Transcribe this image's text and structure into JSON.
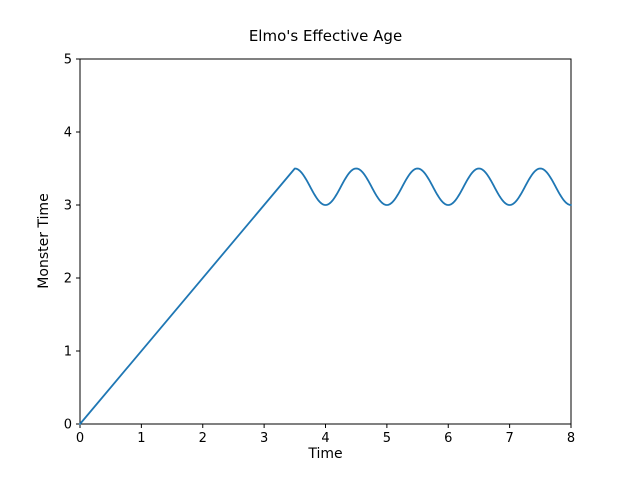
{
  "figure": {
    "background": "#ffffff",
    "frame_color": "#000000"
  },
  "chart_data": {
    "type": "line",
    "title": "Elmo's Effective Age",
    "xlabel": "Time",
    "ylabel": "Monster Time",
    "xlim": [
      0,
      8
    ],
    "ylim": [
      0,
      5
    ],
    "xticks": [
      0,
      1,
      2,
      3,
      4,
      5,
      6,
      7,
      8
    ],
    "yticks": [
      0,
      1,
      2,
      3,
      4,
      5
    ],
    "grid": false,
    "legend": "none",
    "line_color": "#1f77b4",
    "series": [
      {
        "name": "effective-age",
        "description": "Linear ramp with slope 1 from (0,0) to (3.5,3.5), then oscillates sinusoidally between 3.0 and 3.5 with period 1; peaks at x=3.5,4.5,5.5,6.5,7.5 (y=3.5) and troughs at x=4,5,6,7,8 (y=3.0)",
        "segments": [
          {
            "kind": "linear",
            "x_start": 0,
            "x_end": 3.5,
            "y_start": 0,
            "y_end": 3.5
          },
          {
            "kind": "sine",
            "x_start": 3.5,
            "x_end": 8,
            "mean": 3.25,
            "amplitude": 0.25,
            "period": 1,
            "phase_peak_at": 3.5
          }
        ],
        "key_points": [
          {
            "x": 0,
            "y": 0
          },
          {
            "x": 3.5,
            "y": 3.5
          },
          {
            "x": 4.0,
            "y": 3.0
          },
          {
            "x": 4.5,
            "y": 3.5
          },
          {
            "x": 5.0,
            "y": 3.0
          },
          {
            "x": 5.5,
            "y": 3.5
          },
          {
            "x": 6.0,
            "y": 3.0
          },
          {
            "x": 6.5,
            "y": 3.5
          },
          {
            "x": 7.0,
            "y": 3.0
          },
          {
            "x": 7.5,
            "y": 3.5
          },
          {
            "x": 8.0,
            "y": 3.0
          }
        ]
      }
    ]
  }
}
